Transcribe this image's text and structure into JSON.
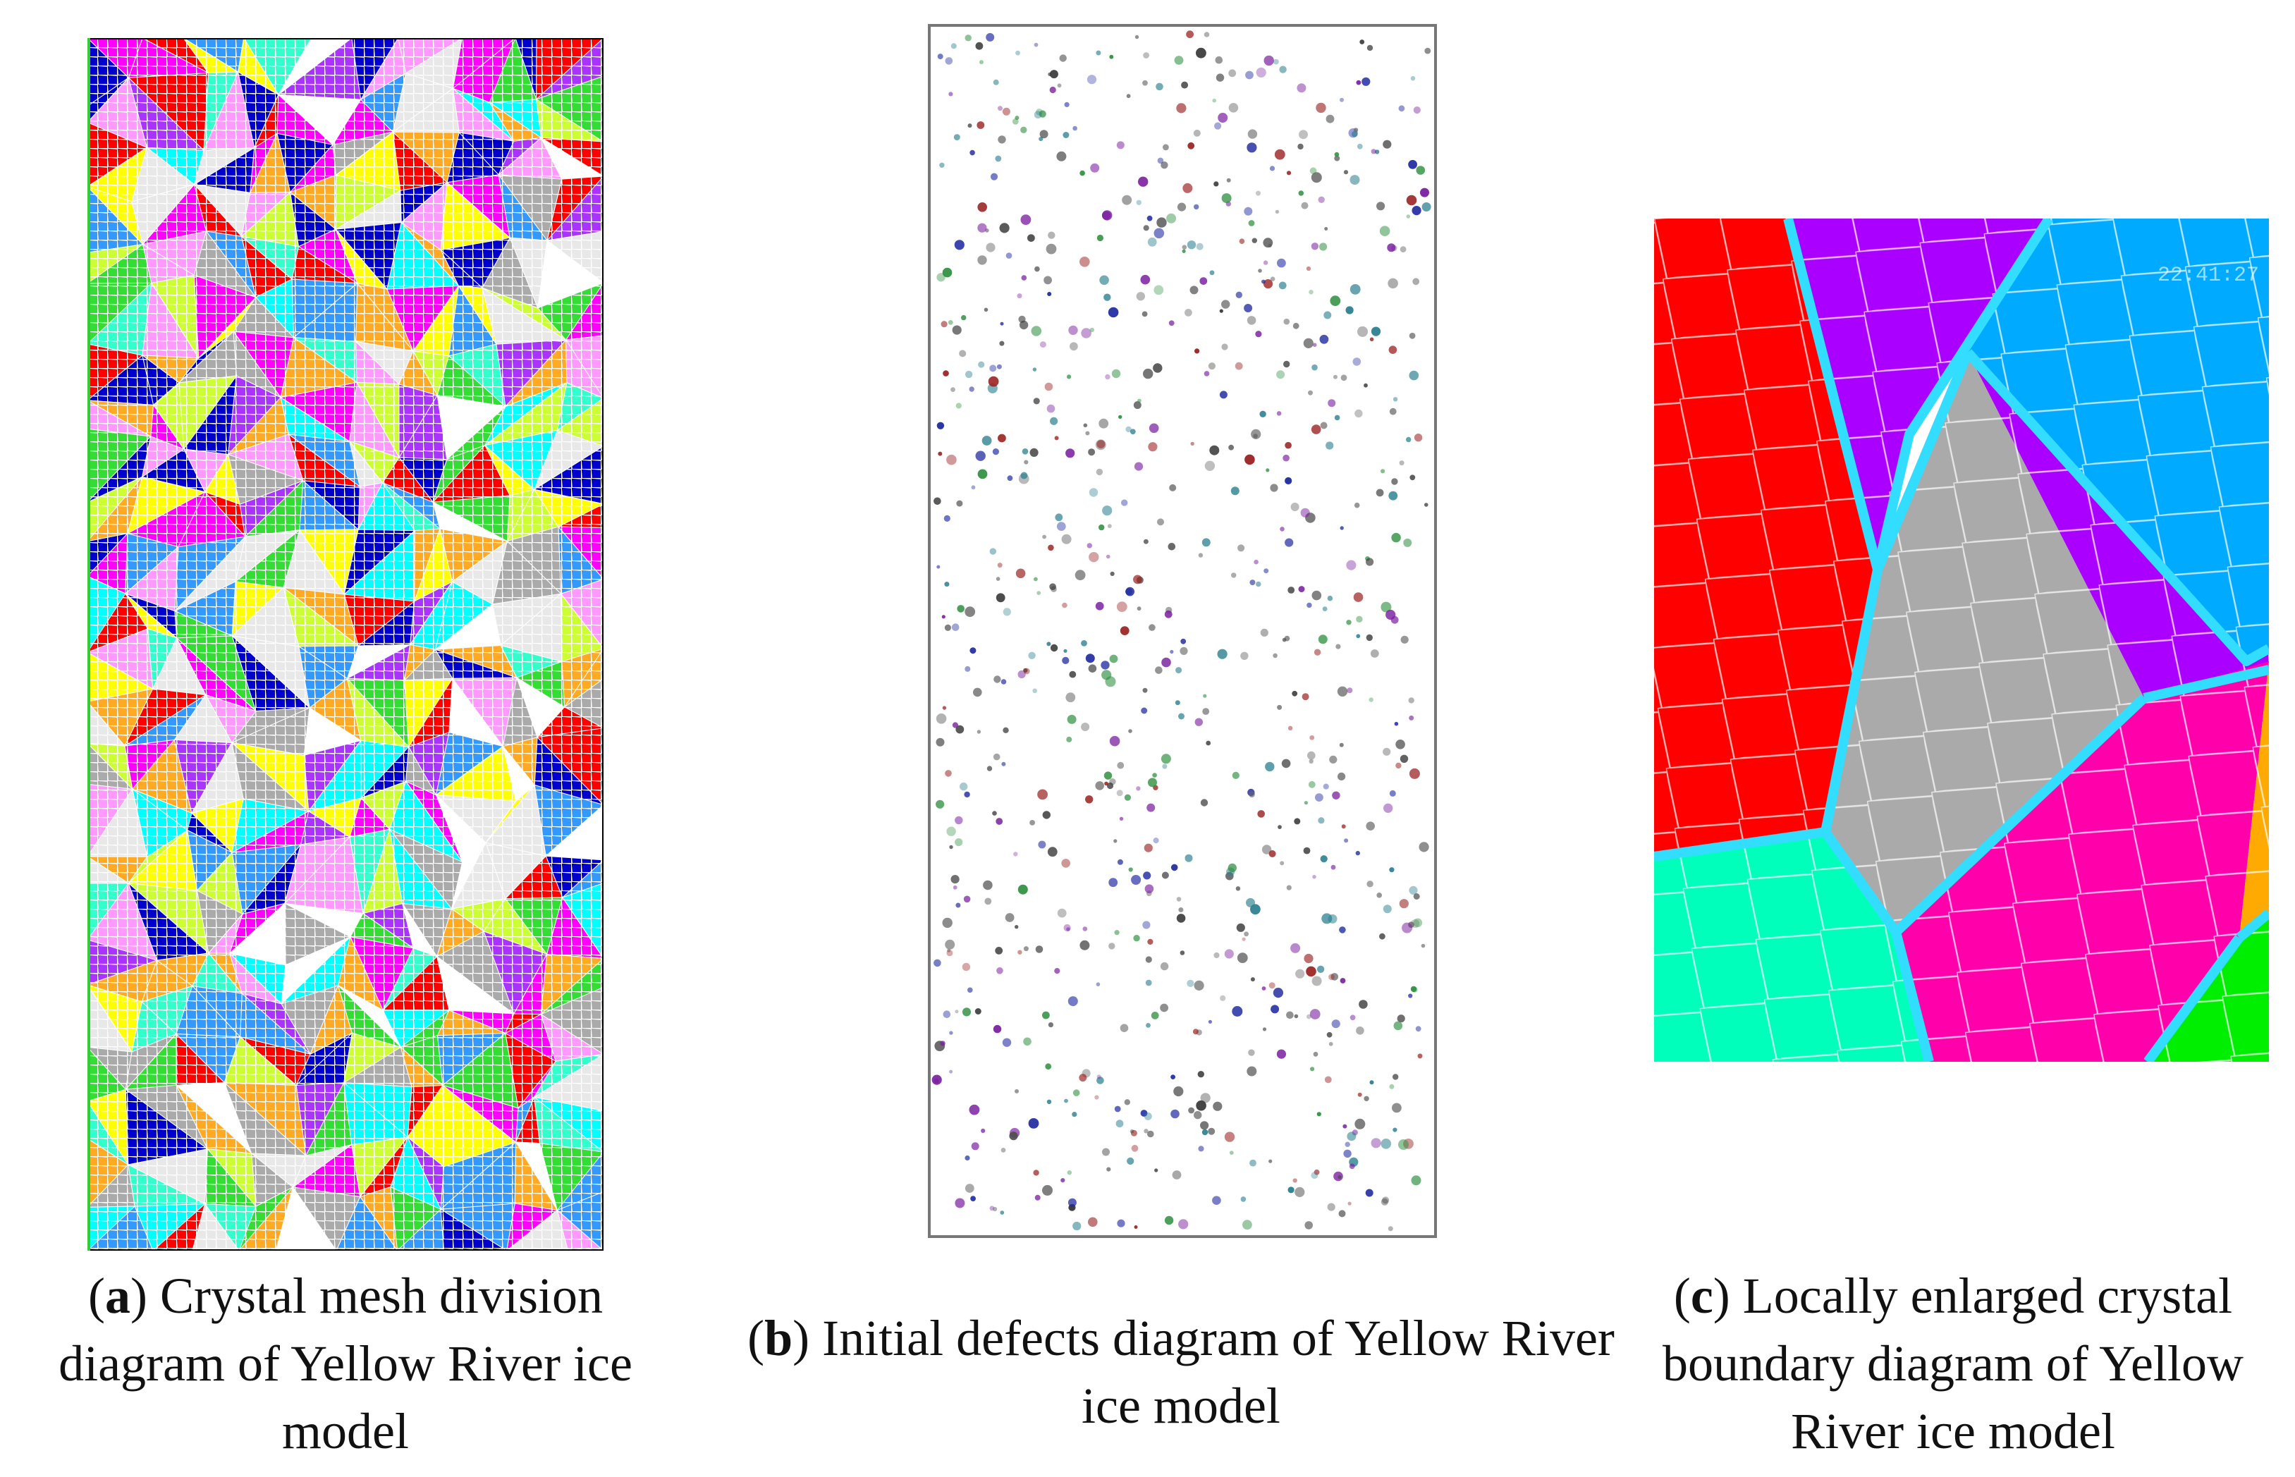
{
  "panels": [
    {
      "id": "a",
      "letter": "a",
      "caption": "Crystal mesh division diagram of Yellow River ice model",
      "grain_colors": [
        "#ff00ff",
        "#00ffff",
        "#ffff00",
        "#33dd33",
        "#ff0000",
        "#0000cc",
        "#aaaaaa",
        "#ffaa22",
        "#33ffcc",
        "#ff99ff",
        "#e8e8e8",
        "#3399ff",
        "#ccff33",
        "#aa33ff",
        "#ffffff"
      ]
    },
    {
      "id": "b",
      "letter": "b",
      "caption": "Initial defects diagram of Yellow River ice model",
      "defect_colors": [
        "#3a3a3a",
        "#7a1fa0",
        "#1f2aa0",
        "#2e8f3f",
        "#9a2020",
        "#2a7f8f",
        "#666666",
        "#4d4d4d"
      ]
    },
    {
      "id": "c",
      "letter": "c",
      "caption": "Locally enlarged crystal boundary diagram of Yellow River ice model",
      "timestamp": "22:41:27",
      "grain_colors": {
        "red": "#ff0000",
        "purple": "#aa00ff",
        "blue": "#00aaff",
        "gray": "#aaaaaa",
        "teal": "#00ffbb",
        "magenta": "#ff00aa",
        "green": "#00ee00",
        "orange": "#ffaa00"
      },
      "boundary_color": "#33ddff"
    }
  ]
}
